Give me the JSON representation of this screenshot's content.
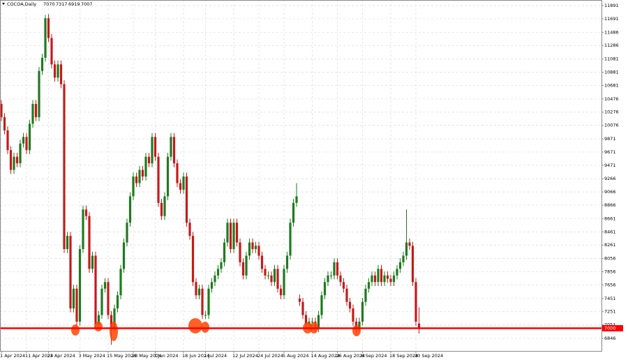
{
  "chart_data": {
    "type": "candlestick",
    "symbol": "COCOA,Daily",
    "categories": [
      "1 Apr 2024",
      null,
      null,
      null,
      null,
      null,
      null,
      null,
      "11 Apr 2024",
      null,
      null,
      null,
      null,
      null,
      null,
      "23 Apr 2024",
      null,
      null,
      null,
      null,
      null,
      null,
      null,
      null,
      null,
      "3 May 2024",
      null,
      null,
      null,
      null,
      null,
      null,
      null,
      null,
      "15 May 2024",
      null,
      null,
      null,
      null,
      null,
      null,
      null,
      "28 May 2024",
      null,
      null,
      null,
      null,
      null,
      null,
      "7 Jun 2024",
      null,
      null,
      null,
      null,
      null,
      null,
      null,
      null,
      "18 Jun 2024",
      null,
      null,
      null,
      null,
      null,
      null,
      "1 Jul 2024",
      null,
      null,
      null,
      null,
      null,
      null,
      null,
      null,
      "12 Jul 2024",
      null,
      null,
      null,
      null,
      null,
      null,
      null,
      "24 Jul 2024",
      null,
      null,
      null,
      null,
      null,
      null,
      null,
      "5 Aug 2024",
      null,
      null,
      null,
      null,
      null,
      null,
      null,
      null,
      "14 Aug 2024",
      null,
      null,
      null,
      null,
      null,
      null,
      null,
      "26 Aug 2024",
      null,
      null,
      null,
      null,
      null,
      null,
      null,
      "6 Sep 2024",
      null,
      null,
      null,
      null,
      null,
      null,
      null,
      null,
      "18 Sep 2024",
      null,
      null,
      null,
      null,
      null,
      null,
      null,
      "30 Sep 2024",
      null
    ],
    "open": [
      10400,
      10200,
      10000,
      9700,
      9400,
      9600,
      9500,
      9800,
      9900,
      9700,
      10100,
      10400,
      10200,
      10900,
      11100,
      11700,
      11400,
      11000,
      10800,
      11000,
      10700,
      8200,
      8400,
      7300,
      7600,
      7100,
      8200,
      8800,
      8700,
      7900,
      8100,
      7050,
      7200,
      7600,
      7700,
      7200,
      7000,
      7300,
      7500,
      7900,
      8300,
      8600,
      9000,
      9300,
      9200,
      9400,
      9300,
      9600,
      9500,
      9900,
      9600,
      8900,
      8700,
      9000,
      9600,
      9900,
      9500,
      9200,
      9100,
      9300,
      8600,
      8400,
      7700,
      7500,
      7600,
      7200,
      7200,
      7600,
      7700,
      7800,
      7900,
      8000,
      8300,
      8600,
      8200,
      8600,
      8300,
      8000,
      7800,
      8100,
      8300,
      8200,
      8250,
      8100,
      7900,
      7800,
      7800,
      7700,
      7900,
      7600,
      7500,
      7900,
      8100,
      8600,
      8900,
      7450,
      7400,
      7200,
      7050,
      7100,
      7100,
      7000,
      7200,
      7500,
      7700,
      7800,
      7800,
      8000,
      7800,
      7700,
      7600,
      7400,
      7300,
      7100,
      7000,
      7100,
      7400,
      7600,
      7700,
      7800,
      7700,
      7900,
      7700,
      7800,
      7750,
      7700,
      7800,
      7900,
      8000,
      8100,
      8300,
      8250,
      7700,
      7070
    ],
    "high": [
      10460,
      10260,
      10060,
      9760,
      9660,
      9660,
      9860,
      9960,
      9960,
      10160,
      10460,
      10460,
      10960,
      11160,
      11750,
      11760,
      11460,
      11060,
      11060,
      11060,
      10760,
      8460,
      8460,
      7660,
      7660,
      8260,
      8860,
      8860,
      8760,
      8160,
      8160,
      7260,
      7660,
      7760,
      7760,
      7260,
      7360,
      7560,
      7960,
      8360,
      8660,
      9060,
      9360,
      9360,
      9460,
      9460,
      9660,
      9660,
      9960,
      9960,
      9660,
      8960,
      9060,
      9660,
      9960,
      9960,
      9560,
      9260,
      9360,
      9360,
      8660,
      8460,
      7760,
      7660,
      7660,
      7260,
      7660,
      7760,
      7860,
      7960,
      8060,
      8360,
      8660,
      8660,
      8660,
      8660,
      8360,
      8060,
      8160,
      8360,
      8360,
      8310,
      8310,
      8160,
      7960,
      7860,
      7860,
      7960,
      7960,
      7660,
      7960,
      8160,
      8660,
      8960,
      9200,
      7510,
      7460,
      7260,
      7160,
      7160,
      7160,
      7260,
      7560,
      7760,
      7860,
      7860,
      8060,
      8060,
      7860,
      7760,
      7660,
      7460,
      7360,
      7160,
      7160,
      7460,
      7660,
      7760,
      7860,
      7860,
      7960,
      7960,
      7860,
      7860,
      7810,
      7860,
      7960,
      8060,
      8160,
      8800,
      8360,
      8310,
      7760,
      7317
    ],
    "low": [
      10140,
      9940,
      9640,
      9340,
      9340,
      9440,
      9440,
      9740,
      9640,
      9640,
      10040,
      10140,
      10140,
      10840,
      11040,
      11340,
      10940,
      10740,
      10740,
      10640,
      8140,
      8140,
      7240,
      7240,
      7040,
      7040,
      8140,
      8640,
      7840,
      7840,
      6990,
      6990,
      7140,
      7540,
      7140,
      6750,
      6940,
      7240,
      7440,
      7840,
      8240,
      8540,
      8940,
      9140,
      9140,
      9240,
      9240,
      9440,
      9440,
      9540,
      8840,
      8640,
      8640,
      8940,
      9540,
      9440,
      9140,
      9040,
      9040,
      8540,
      8340,
      7640,
      7440,
      7440,
      7140,
      7140,
      7140,
      7540,
      7640,
      7740,
      7840,
      7940,
      8240,
      8140,
      8140,
      8240,
      7940,
      7740,
      7740,
      8040,
      8140,
      8140,
      8040,
      7840,
      7740,
      7740,
      7640,
      7640,
      7540,
      7440,
      7440,
      7840,
      8040,
      8540,
      8840,
      7340,
      7140,
      6990,
      6990,
      7040,
      6940,
      6940,
      7140,
      7440,
      7640,
      7740,
      7740,
      7740,
      7640,
      7540,
      7340,
      7240,
      7040,
      6900,
      6940,
      7040,
      7340,
      7540,
      7640,
      7640,
      7640,
      7640,
      7640,
      7690,
      7640,
      7640,
      7740,
      7840,
      7940,
      8040,
      8190,
      7640,
      7040,
      6919
    ],
    "close": [
      10200,
      10000,
      9700,
      9400,
      9600,
      9500,
      9800,
      9900,
      9700,
      10100,
      10400,
      10200,
      10900,
      11100,
      11700,
      11400,
      11000,
      10800,
      11000,
      10700,
      8200,
      8400,
      7300,
      7600,
      7100,
      8200,
      8800,
      8700,
      7900,
      8100,
      7050,
      7200,
      7600,
      7700,
      7200,
      7000,
      7300,
      7500,
      7900,
      8300,
      8600,
      9000,
      9300,
      9200,
      9400,
      9300,
      9600,
      9500,
      9900,
      9600,
      8900,
      8700,
      9000,
      9600,
      9900,
      9500,
      9200,
      9100,
      9300,
      8600,
      8400,
      7700,
      7500,
      7600,
      7200,
      7200,
      7600,
      7700,
      7800,
      7900,
      8000,
      8300,
      8600,
      8200,
      8600,
      8300,
      8000,
      7800,
      8100,
      8300,
      8200,
      8250,
      8100,
      7900,
      7800,
      7800,
      7700,
      7900,
      7600,
      7500,
      7900,
      8100,
      8600,
      8900,
      9000,
      7400,
      7200,
      7050,
      7100,
      7100,
      7000,
      7200,
      7500,
      7700,
      7800,
      7800,
      8000,
      7800,
      7700,
      7600,
      7400,
      7300,
      7100,
      7000,
      7100,
      7400,
      7600,
      7700,
      7800,
      7700,
      7900,
      7700,
      7800,
      7750,
      7700,
      7800,
      7900,
      8000,
      8100,
      8300,
      8250,
      7700,
      7100,
      7007
    ],
    "up_color": "#1f7a1f",
    "down_color": "#c41a1a",
    "hline": {
      "value": 7000,
      "color": "#ff0000"
    },
    "ylim": [
      6656,
      11976
    ],
    "yticks": [
      6846,
      7051,
      7251,
      7451,
      7656,
      7856,
      8056,
      8261,
      8461,
      8661,
      8866,
      9066,
      9266,
      9471,
      9671,
      9871,
      10076,
      10276,
      10476,
      10681,
      10881,
      11081,
      11286,
      11486,
      11691,
      11891
    ],
    "grid": true
  }
}
